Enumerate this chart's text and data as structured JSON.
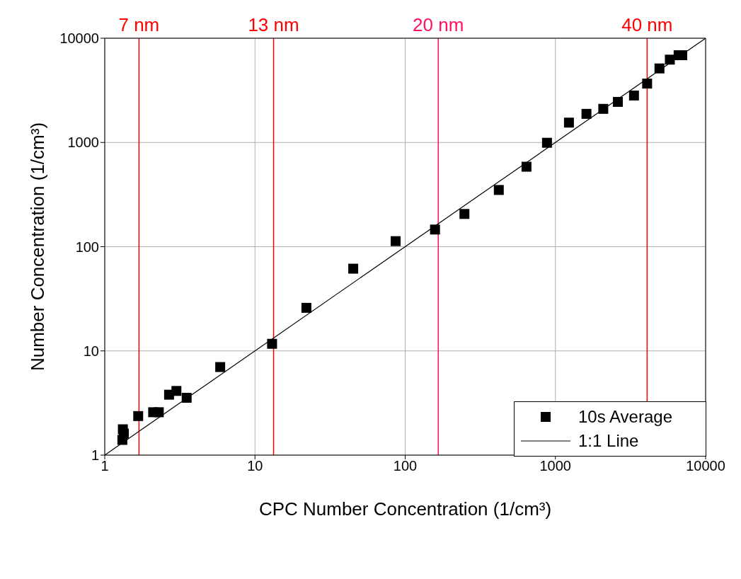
{
  "chart_data": {
    "type": "scatter",
    "xlabel": "CPC Number Concentration (1/cm³)",
    "ylabel": "Number Concentration (1/cm³)",
    "log": "xy",
    "xlim": [
      1,
      10000
    ],
    "ylim": [
      1,
      10000
    ],
    "xticks": [
      1,
      10,
      100,
      1000,
      10000
    ],
    "yticks": [
      1,
      10,
      100,
      1000,
      10000
    ],
    "grid": true,
    "legend": "bottom right",
    "series": [
      {
        "name": "10s Average",
        "marker": "square",
        "color": "#000000",
        "x": [
          1.31,
          1.32,
          1.34,
          1.67,
          2.1,
          2.29,
          2.68,
          3.0,
          3.51,
          5.87,
          13.0,
          22.0,
          45.1,
          86.4,
          158,
          248,
          420,
          642,
          879,
          1231,
          1610,
          2083,
          2606,
          3336,
          4080,
          4930,
          5780,
          6610,
          6990
        ],
        "values": [
          1.4,
          1.77,
          1.61,
          2.37,
          2.58,
          2.58,
          3.8,
          4.13,
          3.55,
          7.0,
          11.7,
          25.9,
          61.5,
          113,
          146,
          206,
          350,
          585,
          993,
          1550,
          1880,
          2100,
          2450,
          2820,
          3670,
          5130,
          6230,
          6870,
          6870
        ]
      },
      {
        "name": "1:1 Line",
        "type": "line",
        "marker": "none",
        "color": "#000000",
        "x": [
          1,
          10000
        ],
        "values": [
          1,
          10000
        ]
      }
    ],
    "ref_lines": [
      {
        "axis": "x",
        "value": 1.69,
        "label": "7 nm",
        "color": "#ff0000"
      },
      {
        "axis": "x",
        "value": 13.3,
        "label": "13 nm",
        "color": "#ff0000"
      },
      {
        "axis": "x",
        "value": 166,
        "label": "20 nm",
        "color": "#ff1060"
      },
      {
        "axis": "x",
        "value": 4080,
        "label": "40 nm",
        "color": "#ff0000"
      }
    ]
  }
}
